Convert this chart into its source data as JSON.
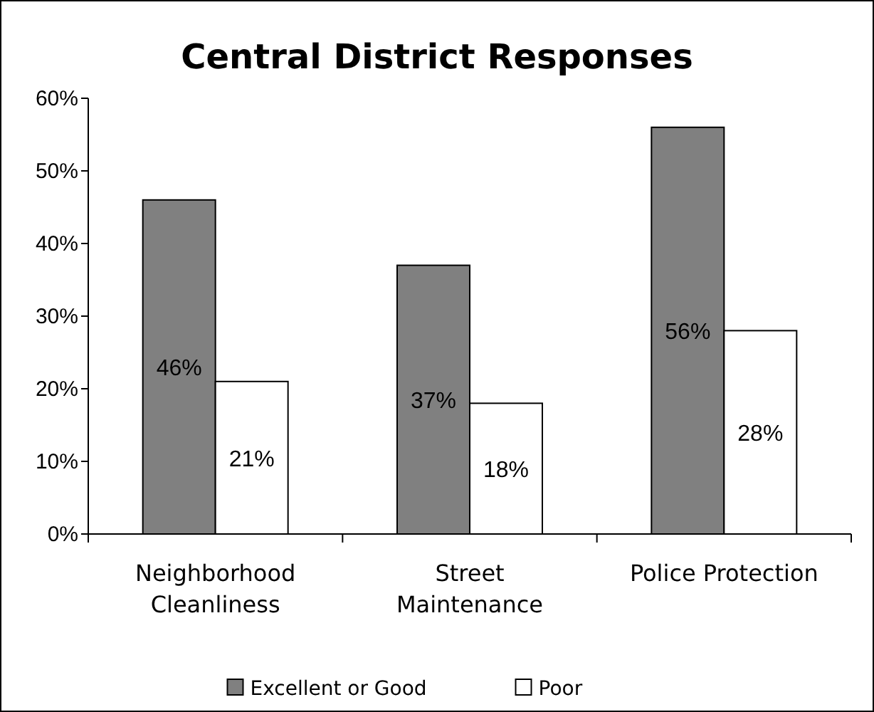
{
  "chart_data": {
    "type": "bar",
    "title": "Central District Responses",
    "categories": [
      "Neighborhood Cleanliness",
      "Street Maintenance",
      "Police Protection"
    ],
    "series": [
      {
        "name": "Excellent or Good",
        "color": "#808080",
        "values": [
          46,
          37,
          56
        ],
        "value_labels": [
          "46%",
          "37%",
          "56%"
        ]
      },
      {
        "name": "Poor",
        "color": "#ffffff",
        "values": [
          21,
          18,
          28
        ],
        "value_labels": [
          "21%",
          "18%",
          "28%"
        ]
      }
    ],
    "ylim": [
      0,
      60
    ],
    "yticks": [
      {
        "value": 0,
        "label": "0%"
      },
      {
        "value": 10,
        "label": "10%"
      },
      {
        "value": 20,
        "label": "20%"
      },
      {
        "value": 30,
        "label": "30%"
      },
      {
        "value": 40,
        "label": "40%"
      },
      {
        "value": 50,
        "label": "50%"
      },
      {
        "value": 60,
        "label": "60%"
      }
    ],
    "grid": false,
    "legend": "bottom"
  }
}
